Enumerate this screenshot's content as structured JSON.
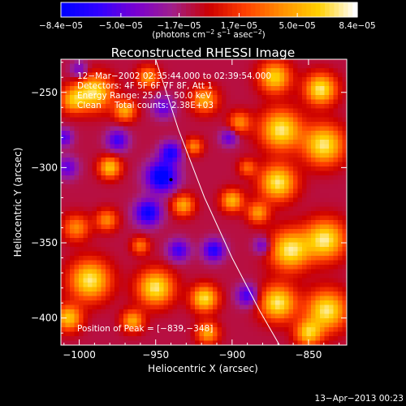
{
  "chart_data": {
    "type": "heatmap",
    "title": "Reconstructed RHESSI Image",
    "xlabel": "Heliocentric X (arcsec)",
    "ylabel": "Heliocentric Y (arcsec)",
    "xlim": [
      -1012,
      -825
    ],
    "ylim": [
      -418,
      -228
    ],
    "x_ticks": [
      {
        "value": -1000,
        "label": "−1000"
      },
      {
        "value": -950,
        "label": "−950"
      },
      {
        "value": -900,
        "label": "−900"
      },
      {
        "value": -850,
        "label": "−850"
      }
    ],
    "y_ticks": [
      {
        "value": -250,
        "label": "−250"
      },
      {
        "value": -300,
        "label": "−300"
      },
      {
        "value": -350,
        "label": "−350"
      },
      {
        "value": -400,
        "label": "−400"
      }
    ],
    "colorbar": {
      "ticks": [
        {
          "value": -8.4e-05,
          "label": "−8.4e−05"
        },
        {
          "value": -5e-05,
          "label": "−5.0e−05"
        },
        {
          "value": -1.7e-05,
          "label": "−1.7e−05"
        },
        {
          "value": 1.7e-05,
          "label": "1.7e−05"
        },
        {
          "value": 5e-05,
          "label": "5.0e−05"
        },
        {
          "value": 8.4e-05,
          "label": "8.4e−05"
        }
      ],
      "range": [
        -8.4e-05,
        8.4e-05
      ],
      "units_prefix": "(photons cm",
      "units_mid1": " s",
      "units_mid2": " asec",
      "units_suffix": ")",
      "sup_m2": "−2",
      "sup_m1": "−1",
      "sup_m2b": "−2"
    },
    "colormap": [
      "#0000ff",
      "#3300ff",
      "#7a00d0",
      "#a0208a",
      "#cc0000",
      "#ff4000",
      "#ff9000",
      "#ffd000",
      "#ffffff"
    ],
    "annotations": {
      "time_range": "12−Mar−2002 02:35:44.000 to 02:39:54.000",
      "detectors": "Detectors: 4F 5F 6F 7F 8F, Att 1",
      "energy_range": "Energy Range: 25.0 − 50.0 keV",
      "clean": "Clean",
      "total_counts": "Total counts: 2.38E+03",
      "peak_position": "Position of Peak = [−839,−348]"
    },
    "limb_line": [
      [
        -950,
        -228
      ],
      [
        -935,
        -275
      ],
      [
        -918,
        -320
      ],
      [
        -900,
        -360
      ],
      [
        -882,
        -395
      ],
      [
        -869,
        -418
      ]
    ],
    "marker": {
      "x": -940,
      "y": -308
    },
    "sources": [
      {
        "x": -990,
        "y": -250,
        "amp": 8e-05,
        "sigma": 8
      },
      {
        "x": -1004,
        "y": -255,
        "amp": 6e-05,
        "sigma": 6
      },
      {
        "x": -980,
        "y": -300,
        "amp": 7e-05,
        "sigma": 5
      },
      {
        "x": -970,
        "y": -262,
        "amp": 6e-05,
        "sigma": 5
      },
      {
        "x": -955,
        "y": -240,
        "amp": 5.5e-05,
        "sigma": 5
      },
      {
        "x": -1002,
        "y": -340,
        "amp": 5e-05,
        "sigma": 6
      },
      {
        "x": -982,
        "y": -335,
        "amp": 5e-05,
        "sigma": 5
      },
      {
        "x": -960,
        "y": -352,
        "amp": 4.5e-05,
        "sigma": 4
      },
      {
        "x": -993,
        "y": -375,
        "amp": 8.4e-05,
        "sigma": 9
      },
      {
        "x": -1007,
        "y": -400,
        "amp": 7e-05,
        "sigma": 6
      },
      {
        "x": -950,
        "y": -380,
        "amp": 8.4e-05,
        "sigma": 8
      },
      {
        "x": -965,
        "y": -402,
        "amp": 6e-05,
        "sigma": 5
      },
      {
        "x": -918,
        "y": -387,
        "amp": 8e-05,
        "sigma": 6
      },
      {
        "x": -916,
        "y": -410,
        "amp": 6e-05,
        "sigma": 5
      },
      {
        "x": -932,
        "y": -325,
        "amp": 6e-05,
        "sigma": 5
      },
      {
        "x": -900,
        "y": -322,
        "amp": 6.5e-05,
        "sigma": 5
      },
      {
        "x": -883,
        "y": -330,
        "amp": 5.5e-05,
        "sigma": 5
      },
      {
        "x": -925,
        "y": -286,
        "amp": 5e-05,
        "sigma": 4
      },
      {
        "x": -918,
        "y": -255,
        "amp": 6e-05,
        "sigma": 6
      },
      {
        "x": -895,
        "y": -270,
        "amp": 5e-05,
        "sigma": 5
      },
      {
        "x": -890,
        "y": -300,
        "amp": 4e-05,
        "sigma": 4
      },
      {
        "x": -872,
        "y": -240,
        "amp": 7.5e-05,
        "sigma": 7
      },
      {
        "x": -868,
        "y": -275,
        "amp": 8.4e-05,
        "sigma": 9
      },
      {
        "x": -870,
        "y": -310,
        "amp": 8.4e-05,
        "sigma": 8
      },
      {
        "x": -862,
        "y": -355,
        "amp": 8.4e-05,
        "sigma": 9
      },
      {
        "x": -870,
        "y": -390,
        "amp": 8.4e-05,
        "sigma": 8
      },
      {
        "x": -842,
        "y": -248,
        "amp": 8.4e-05,
        "sigma": 7
      },
      {
        "x": -840,
        "y": -285,
        "amp": 8.4e-05,
        "sigma": 9
      },
      {
        "x": -839,
        "y": -348,
        "amp": 8.4e-05,
        "sigma": 9
      },
      {
        "x": -838,
        "y": -395,
        "amp": 8.4e-05,
        "sigma": 9
      },
      {
        "x": -850,
        "y": -410,
        "amp": 7e-05,
        "sigma": 6
      },
      {
        "x": -946,
        "y": -306,
        "amp": -8.4e-05,
        "sigma": 7
      },
      {
        "x": -940,
        "y": -290,
        "amp": -6e-05,
        "sigma": 5
      },
      {
        "x": -955,
        "y": -330,
        "amp": -7e-05,
        "sigma": 6
      },
      {
        "x": -1008,
        "y": -300,
        "amp": -4e-05,
        "sigma": 5
      },
      {
        "x": -975,
        "y": -282,
        "amp": -5e-05,
        "sigma": 5
      },
      {
        "x": -1010,
        "y": -280,
        "amp": -4.5e-05,
        "sigma": 4
      },
      {
        "x": -912,
        "y": -355,
        "amp": -6e-05,
        "sigma": 5
      },
      {
        "x": -935,
        "y": -355,
        "amp": -5e-05,
        "sigma": 5
      },
      {
        "x": -890,
        "y": -385,
        "amp": -5e-05,
        "sigma": 5
      },
      {
        "x": -902,
        "y": -280,
        "amp": -4e-05,
        "sigma": 4
      },
      {
        "x": -880,
        "y": -352,
        "amp": -4e-05,
        "sigma": 4
      },
      {
        "x": -1000,
        "y": -235,
        "amp": -3.5e-05,
        "sigma": 4
      },
      {
        "x": -945,
        "y": -260,
        "amp": -4e-05,
        "sigma": 5
      }
    ]
  },
  "footer": {
    "timestamp": "13−Apr−2013 00:23"
  }
}
